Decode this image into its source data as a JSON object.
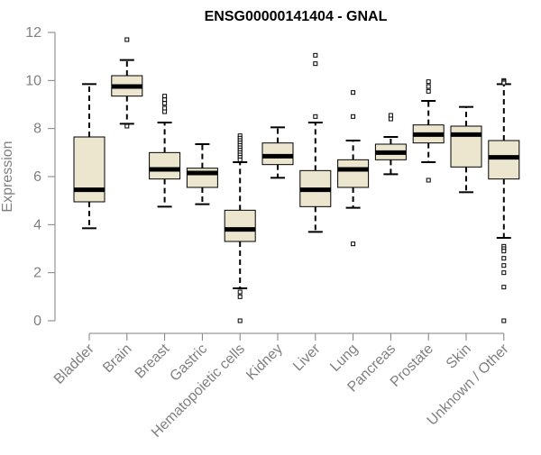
{
  "chart_data": {
    "type": "box",
    "title": "ENSG00000141404 - GNAL",
    "xlabel": "",
    "ylabel": "Expression",
    "ylim": [
      0,
      12
    ],
    "yticks": [
      0,
      2,
      4,
      6,
      8,
      10,
      12
    ],
    "categories": [
      "Bladder",
      "Brain",
      "Breast",
      "Gastric",
      "Hematopoietic cells",
      "Kidney",
      "Liver",
      "Lung",
      "Pancreas",
      "Prostate",
      "Skin",
      "Unknown / Other"
    ],
    "boxes": [
      {
        "category": "Bladder",
        "whisker_low": 3.85,
        "q1": 4.95,
        "median": 5.45,
        "q3": 7.65,
        "whisker_high": 9.85,
        "outliers": []
      },
      {
        "category": "Brain",
        "whisker_low": 8.2,
        "q1": 9.35,
        "median": 9.75,
        "q3": 10.2,
        "whisker_high": 10.85,
        "outliers": [
          11.7,
          8.1
        ]
      },
      {
        "category": "Breast",
        "whisker_low": 4.75,
        "q1": 5.9,
        "median": 6.3,
        "q3": 7.0,
        "whisker_high": 8.25,
        "outliers": [
          9.35,
          9.2,
          9.05,
          8.85,
          8.7
        ]
      },
      {
        "category": "Gastric",
        "whisker_low": 4.85,
        "q1": 5.55,
        "median": 6.15,
        "q3": 6.35,
        "whisker_high": 7.35,
        "outliers": []
      },
      {
        "category": "Hematopoietic cells",
        "whisker_low": 1.35,
        "q1": 3.3,
        "median": 3.8,
        "q3": 4.6,
        "whisker_high": 6.6,
        "outliers": [
          7.7,
          7.6,
          7.5,
          7.4,
          7.3,
          7.2,
          7.1,
          7.0,
          6.9,
          6.8,
          6.7,
          1.2,
          1.0,
          0.0
        ]
      },
      {
        "category": "Kidney",
        "whisker_low": 5.95,
        "q1": 6.5,
        "median": 6.85,
        "q3": 7.4,
        "whisker_high": 8.05,
        "outliers": []
      },
      {
        "category": "Liver",
        "whisker_low": 3.7,
        "q1": 4.75,
        "median": 5.45,
        "q3": 6.25,
        "whisker_high": 8.25,
        "outliers": [
          11.05,
          10.7,
          8.5
        ]
      },
      {
        "category": "Lung",
        "whisker_low": 4.7,
        "q1": 5.55,
        "median": 6.3,
        "q3": 6.7,
        "whisker_high": 7.5,
        "outliers": [
          9.5,
          8.5,
          3.2
        ]
      },
      {
        "category": "Pancreas",
        "whisker_low": 6.1,
        "q1": 6.7,
        "median": 7.0,
        "q3": 7.35,
        "whisker_high": 7.65,
        "outliers": [
          8.55,
          8.4
        ]
      },
      {
        "category": "Prostate",
        "whisker_low": 6.6,
        "q1": 7.4,
        "median": 7.75,
        "q3": 8.15,
        "whisker_high": 9.15,
        "outliers": [
          9.95,
          9.75,
          9.55,
          5.85
        ]
      },
      {
        "category": "Skin",
        "whisker_low": 5.35,
        "q1": 6.4,
        "median": 7.75,
        "q3": 8.1,
        "whisker_high": 8.9,
        "outliers": []
      },
      {
        "category": "Unknown / Other",
        "whisker_low": 3.45,
        "q1": 5.9,
        "median": 6.8,
        "q3": 7.5,
        "whisker_high": 9.85,
        "outliers": [
          10.0,
          9.95,
          9.9,
          3.1,
          3.0,
          2.9,
          2.6,
          2.3,
          2.0,
          1.4,
          0.0
        ]
      }
    ],
    "colors": {
      "box_fill": "#ede6cf",
      "box_stroke": "#000000",
      "median": "#000000",
      "axis": "#808080",
      "tick_text": "#808080",
      "title": "#000000"
    },
    "grid": false,
    "legend": "none"
  }
}
